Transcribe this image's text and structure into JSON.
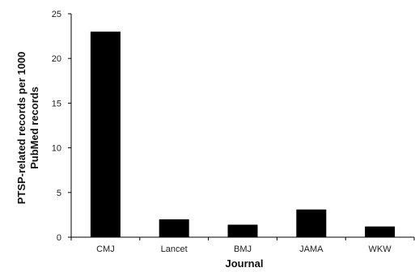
{
  "chart_data": {
    "type": "bar",
    "categories": [
      "CMJ",
      "Lancet",
      "BMJ",
      "JAMA",
      "WKW"
    ],
    "values": [
      23.0,
      2.0,
      1.4,
      3.1,
      1.2
    ],
    "xlabel": "Journal",
    "ylabel_lines": [
      "PTSP-related records per 1000",
      "PubMed records"
    ],
    "ylim": [
      0,
      25
    ],
    "yticks": [
      0,
      5,
      10,
      15,
      20,
      25
    ],
    "bar_color": "#000000",
    "axis_color": "#000000",
    "grid": false,
    "legend": "none"
  }
}
